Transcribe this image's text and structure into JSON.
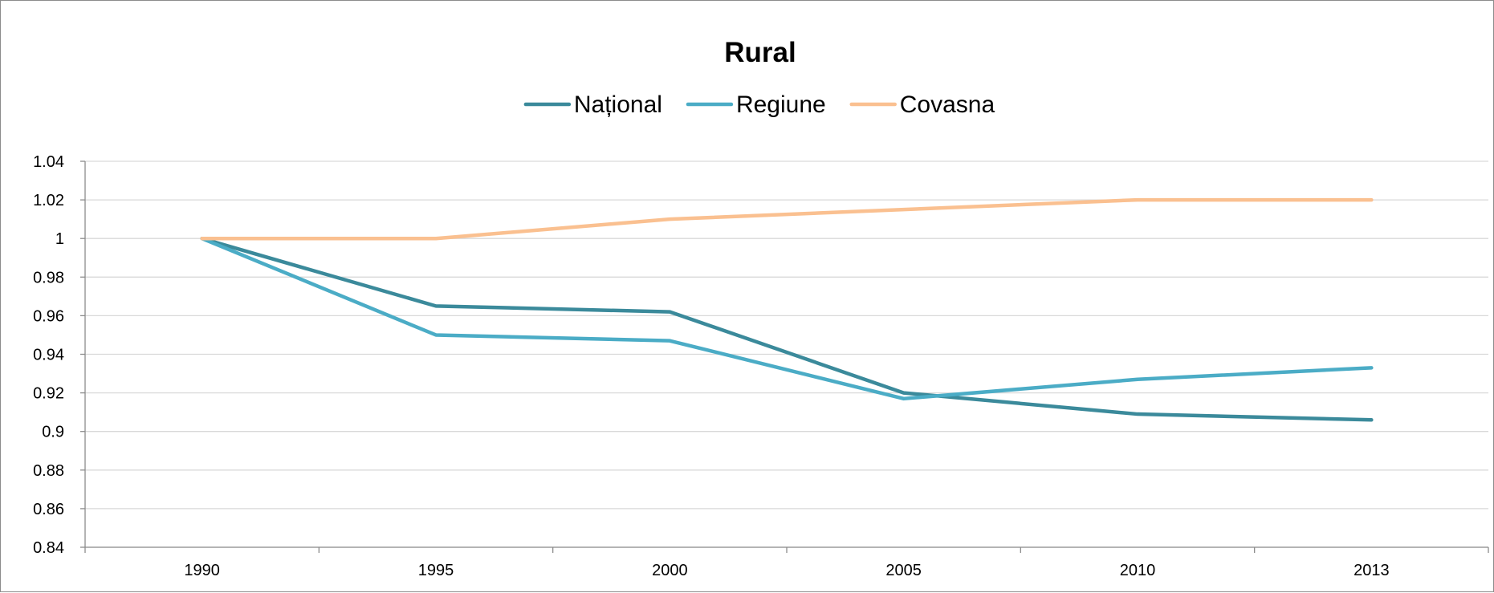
{
  "chart_data": {
    "type": "line",
    "title": "Rural",
    "xlabel": "",
    "ylabel": "",
    "categories": [
      "1990",
      "1995",
      "2000",
      "2005",
      "2010",
      "2013"
    ],
    "ylim": [
      0.84,
      1.04
    ],
    "ystep": 0.02,
    "y_tick_labels": [
      "0.84",
      "0.86",
      "0.88",
      "0.9",
      "0.92",
      "0.94",
      "0.96",
      "0.98",
      "1",
      "1.02",
      "1.04"
    ],
    "grid": true,
    "legend_position": "top",
    "series": [
      {
        "name": "Național",
        "color": "#3b8a9b",
        "values": [
          1.0,
          0.965,
          0.962,
          0.92,
          0.909,
          0.906
        ]
      },
      {
        "name": "Regiune",
        "color": "#4bacc6",
        "values": [
          1.0,
          0.95,
          0.947,
          0.917,
          0.927,
          0.933
        ]
      },
      {
        "name": "Covasna",
        "color": "#fac090",
        "values": [
          1.0,
          1.0,
          1.01,
          1.015,
          1.02,
          1.02
        ]
      }
    ]
  }
}
